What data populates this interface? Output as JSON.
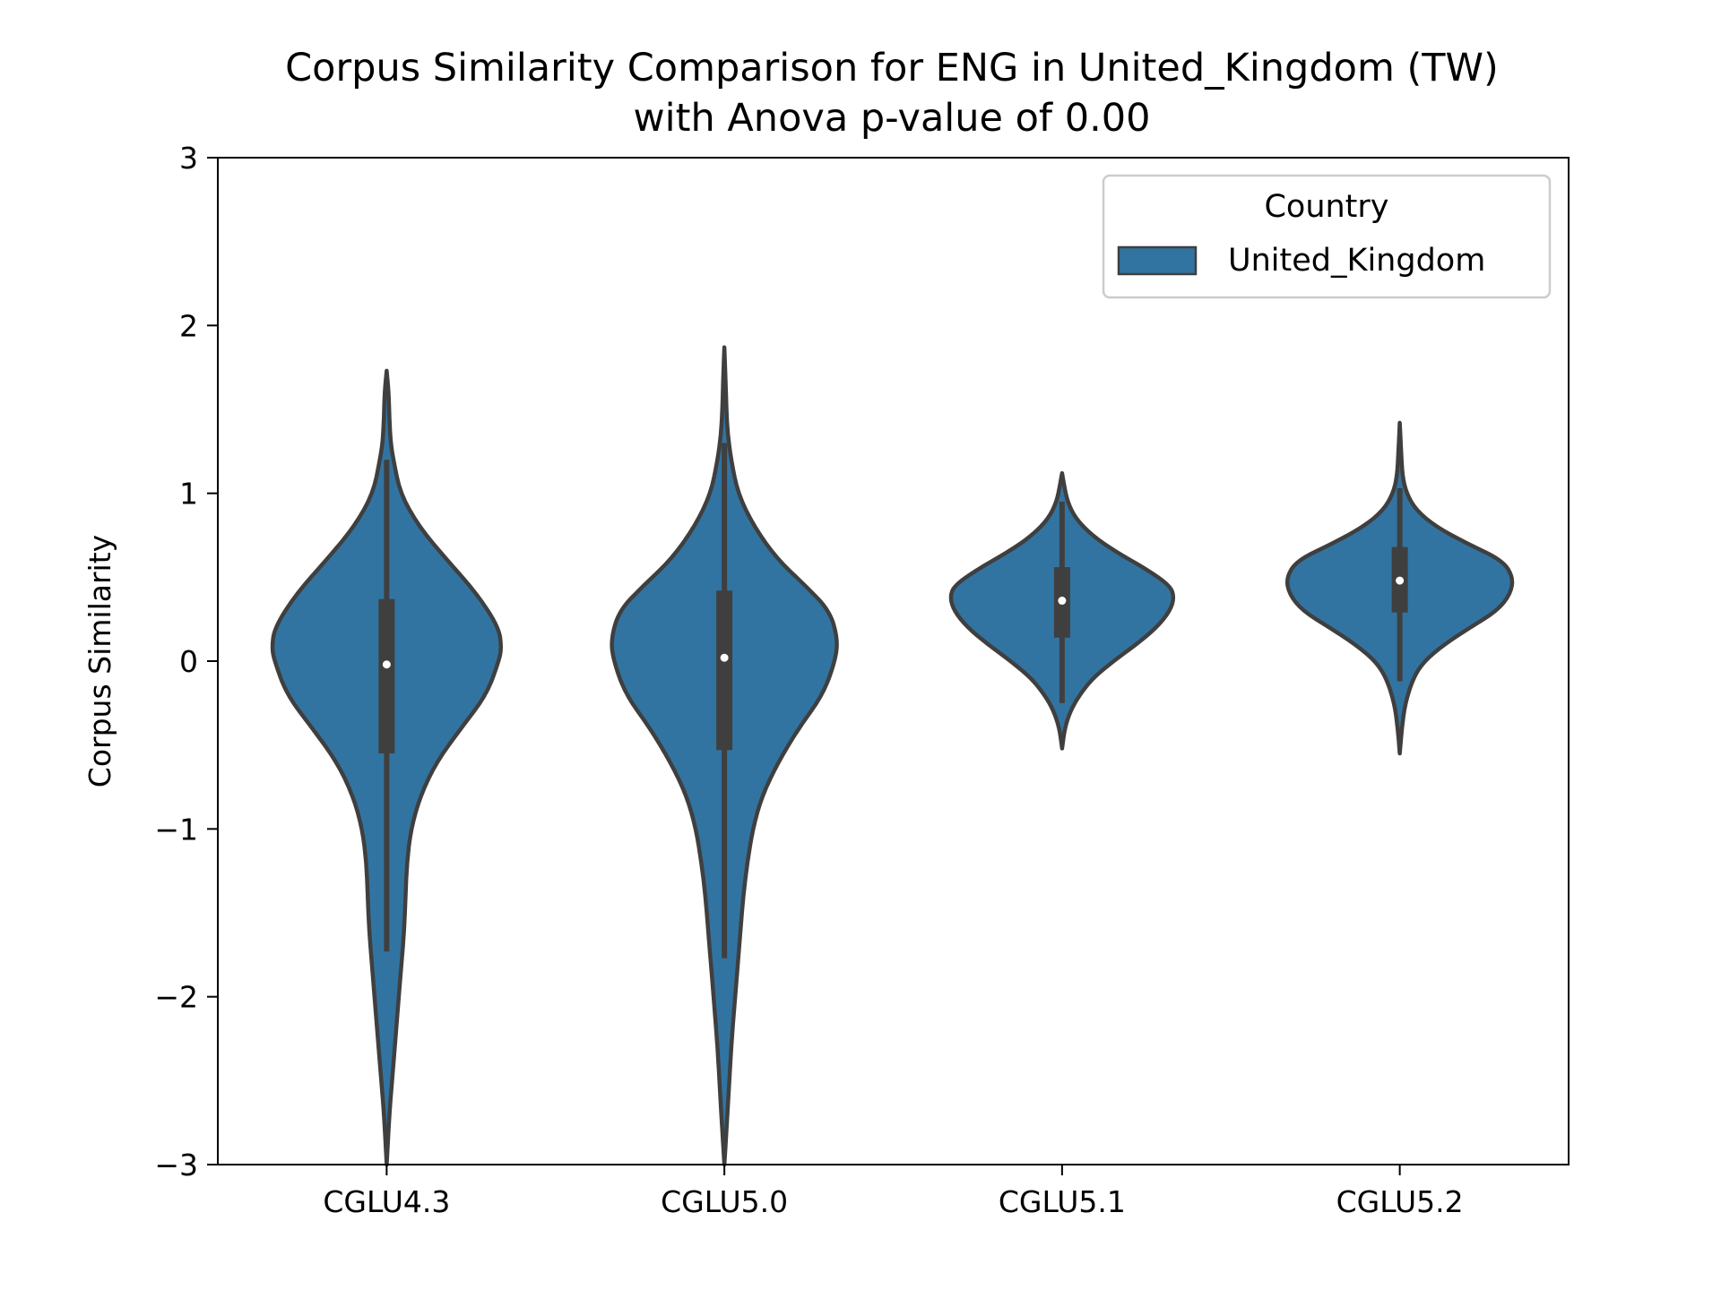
{
  "chart_data": {
    "type": "violin",
    "title_line1": "Corpus Similarity Comparison for ENG in United_Kingdom (TW)",
    "title_line2": "with Anova p-value of 0.00",
    "xlabel": "",
    "ylabel": "Corpus Similarity",
    "ylim": [
      -3,
      3
    ],
    "yticks": [
      {
        "value": 3,
        "label": "3"
      },
      {
        "value": 2,
        "label": "2"
      },
      {
        "value": 1,
        "label": "1"
      },
      {
        "value": 0,
        "label": "0"
      },
      {
        "value": -1,
        "label": "−1"
      },
      {
        "value": -2,
        "label": "−2"
      },
      {
        "value": -3,
        "label": "−3"
      }
    ],
    "categories": [
      "CGLU4.3",
      "CGLU5.0",
      "CGLU5.1",
      "CGLU5.2"
    ],
    "legend": {
      "title": "Country",
      "entries": [
        "United_Kingdom"
      ],
      "placement": "top-right"
    },
    "colors": {
      "fill": "#3274a1",
      "edge": "#3f3f3f",
      "median": "#ffffff"
    },
    "series": [
      {
        "name": "United_Kingdom",
        "violins": [
          {
            "category": "CGLU4.3",
            "min": -3.0,
            "max": 1.73,
            "q1": -0.55,
            "median": -0.02,
            "q3": 0.37,
            "whisker_low": -1.73,
            "whisker_high": 1.2,
            "profile": [
              [
                -3.0,
                0.0
              ],
              [
                -2.7,
                0.02
              ],
              [
                -2.5,
                0.04
              ],
              [
                -2.2,
                0.07
              ],
              [
                -2.0,
                0.09
              ],
              [
                -1.8,
                0.11
              ],
              [
                -1.6,
                0.13
              ],
              [
                -1.4,
                0.14
              ],
              [
                -1.2,
                0.15
              ],
              [
                -1.0,
                0.18
              ],
              [
                -0.8,
                0.25
              ],
              [
                -0.6,
                0.37
              ],
              [
                -0.4,
                0.55
              ],
              [
                -0.2,
                0.74
              ],
              [
                0.0,
                0.83
              ],
              [
                0.08,
                0.85
              ],
              [
                0.2,
                0.83
              ],
              [
                0.4,
                0.67
              ],
              [
                0.6,
                0.45
              ],
              [
                0.8,
                0.24
              ],
              [
                1.0,
                0.1
              ],
              [
                1.2,
                0.05
              ],
              [
                1.3,
                0.03
              ],
              [
                1.45,
                0.02
              ],
              [
                1.6,
                0.015
              ],
              [
                1.73,
                0.0
              ]
            ]
          },
          {
            "category": "CGLU5.0",
            "min": -3.0,
            "max": 1.87,
            "q1": -0.53,
            "median": 0.02,
            "q3": 0.42,
            "whisker_low": -1.77,
            "whisker_high": 1.3,
            "profile": [
              [
                -3.0,
                0.0
              ],
              [
                -2.8,
                0.015
              ],
              [
                -2.6,
                0.03
              ],
              [
                -2.3,
                0.05
              ],
              [
                -2.0,
                0.08
              ],
              [
                -1.8,
                0.1
              ],
              [
                -1.6,
                0.12
              ],
              [
                -1.4,
                0.14
              ],
              [
                -1.2,
                0.17
              ],
              [
                -1.0,
                0.21
              ],
              [
                -0.8,
                0.28
              ],
              [
                -0.6,
                0.4
              ],
              [
                -0.4,
                0.55
              ],
              [
                -0.2,
                0.73
              ],
              [
                0.0,
                0.82
              ],
              [
                0.13,
                0.84
              ],
              [
                0.3,
                0.78
              ],
              [
                0.45,
                0.6
              ],
              [
                0.6,
                0.4
              ],
              [
                0.8,
                0.22
              ],
              [
                1.0,
                0.1
              ],
              [
                1.2,
                0.05
              ],
              [
                1.35,
                0.025
              ],
              [
                1.5,
                0.015
              ],
              [
                1.7,
                0.008
              ],
              [
                1.87,
                0.0
              ]
            ]
          },
          {
            "category": "CGLU5.1",
            "min": -0.52,
            "max": 1.12,
            "q1": 0.14,
            "median": 0.36,
            "q3": 0.56,
            "whisker_low": -0.25,
            "whisker_high": 0.95,
            "profile": [
              [
                -0.52,
                0.0
              ],
              [
                -0.4,
                0.02
              ],
              [
                -0.3,
                0.06
              ],
              [
                -0.2,
                0.13
              ],
              [
                -0.1,
                0.23
              ],
              [
                0.0,
                0.38
              ],
              [
                0.1,
                0.55
              ],
              [
                0.2,
                0.7
              ],
              [
                0.3,
                0.8
              ],
              [
                0.38,
                0.83
              ],
              [
                0.45,
                0.8
              ],
              [
                0.55,
                0.62
              ],
              [
                0.65,
                0.4
              ],
              [
                0.75,
                0.22
              ],
              [
                0.85,
                0.1
              ],
              [
                0.95,
                0.04
              ],
              [
                1.05,
                0.015
              ],
              [
                1.12,
                0.0
              ]
            ]
          },
          {
            "category": "CGLU5.2",
            "min": -0.55,
            "max": 1.42,
            "q1": 0.29,
            "median": 0.48,
            "q3": 0.68,
            "whisker_low": -0.12,
            "whisker_high": 1.03,
            "profile": [
              [
                -0.55,
                0.0
              ],
              [
                -0.4,
                0.015
              ],
              [
                -0.25,
                0.04
              ],
              [
                -0.1,
                0.1
              ],
              [
                0.0,
                0.18
              ],
              [
                0.1,
                0.33
              ],
              [
                0.2,
                0.52
              ],
              [
                0.3,
                0.72
              ],
              [
                0.4,
                0.82
              ],
              [
                0.5,
                0.84
              ],
              [
                0.6,
                0.76
              ],
              [
                0.7,
                0.5
              ],
              [
                0.8,
                0.27
              ],
              [
                0.9,
                0.12
              ],
              [
                1.0,
                0.05
              ],
              [
                1.1,
                0.02
              ],
              [
                1.25,
                0.01
              ],
              [
                1.42,
                0.0
              ]
            ]
          }
        ]
      }
    ],
    "grid": false
  }
}
